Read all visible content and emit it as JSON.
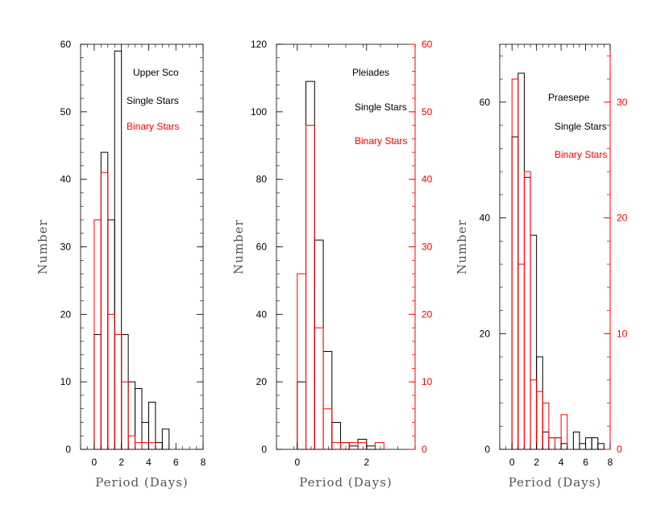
{
  "chart_data": [
    {
      "type": "bar",
      "title": "",
      "xlabel": "Period (Days)",
      "ylabel": "Number",
      "xlim": [
        -1,
        8
      ],
      "ylim": [
        0,
        60
      ],
      "xticks": [
        "0",
        "2",
        "4",
        "6",
        "8"
      ],
      "xtick_values": [
        0,
        2,
        4,
        6,
        8
      ],
      "yticks": [
        "0",
        "10",
        "20",
        "30",
        "40",
        "50",
        "60"
      ],
      "ytick_values": [
        0,
        10,
        20,
        30,
        40,
        50,
        60
      ],
      "bin_width": 0.5,
      "annotations": [
        {
          "text": "Upper Sco",
          "color": "#000000"
        },
        {
          "text": "Single Stars",
          "color": "#000000"
        },
        {
          "text": "Binary Stars",
          "color": "#ff0000"
        }
      ],
      "series": [
        {
          "name": "Single Stars",
          "color": "#000000",
          "axis": "left",
          "bins": [
            0,
            0.5,
            1.0,
            1.5,
            2.0,
            2.5,
            3.0,
            3.5,
            4.0,
            4.5,
            5.0,
            5.5,
            6.0,
            6.5,
            7.0,
            7.5
          ],
          "values": [
            17,
            44,
            34,
            59,
            17,
            10,
            9,
            4,
            7,
            1,
            3,
            0,
            0,
            0,
            0,
            0
          ]
        },
        {
          "name": "Binary Stars",
          "color": "#ff0000",
          "axis": "left",
          "bins": [
            0,
            0.5,
            1.0,
            1.5,
            2.0,
            2.5,
            3.0,
            3.5,
            4.0,
            4.5
          ],
          "values": [
            34,
            41,
            20,
            17,
            10,
            2,
            1,
            1,
            1,
            0
          ]
        }
      ]
    },
    {
      "type": "bar",
      "title": "",
      "xlabel": "Period (Days)",
      "ylabel": "Number",
      "xlim": [
        -0.6,
        3.4
      ],
      "ylim": [
        0,
        120
      ],
      "y2lim": [
        0,
        60
      ],
      "xticks": [
        "0",
        "2"
      ],
      "xtick_values": [
        0,
        2
      ],
      "yticks": [
        "0",
        "20",
        "40",
        "60",
        "80",
        "100",
        "120"
      ],
      "ytick_values": [
        0,
        20,
        40,
        60,
        80,
        100,
        120
      ],
      "y2ticks": [
        "0",
        "10",
        "20",
        "30",
        "40",
        "50",
        "60"
      ],
      "y2tick_values": [
        0,
        10,
        20,
        30,
        40,
        50,
        60
      ],
      "bin_width": 0.25,
      "annotations": [
        {
          "text": "Pleiades",
          "color": "#000000"
        },
        {
          "text": "Single Stars",
          "color": "#000000"
        },
        {
          "text": "Binary Stars",
          "color": "#ff0000"
        }
      ],
      "series": [
        {
          "name": "Single Stars",
          "color": "#000000",
          "axis": "left",
          "bins": [
            0,
            0.25,
            0.5,
            0.75,
            1.0,
            1.25,
            1.5,
            1.75,
            2.0,
            2.25
          ],
          "values": [
            20,
            109,
            62,
            29,
            8,
            2,
            1,
            3,
            1,
            0
          ]
        },
        {
          "name": "Binary Stars",
          "color": "#ff0000",
          "axis": "right",
          "bins": [
            0,
            0.25,
            0.5,
            0.75,
            1.0,
            1.25,
            1.5,
            1.75,
            2.0,
            2.25
          ],
          "values": [
            26,
            48,
            18,
            6,
            1,
            1,
            1,
            1,
            0,
            1
          ]
        }
      ]
    },
    {
      "type": "bar",
      "title": "",
      "xlabel": "Period (Days)",
      "ylabel": "Number",
      "xlim": [
        -1,
        8
      ],
      "ylim": [
        0,
        70
      ],
      "y2lim": [
        0,
        35
      ],
      "xticks": [
        "0",
        "2",
        "4",
        "6",
        "8"
      ],
      "xtick_values": [
        0,
        2,
        4,
        6,
        8
      ],
      "yticks": [
        "0",
        "20",
        "40",
        "60"
      ],
      "ytick_values": [
        0,
        20,
        40,
        60
      ],
      "y2ticks": [
        "0",
        "10",
        "20",
        "30"
      ],
      "y2tick_values": [
        0,
        10,
        20,
        30
      ],
      "bin_width": 0.5,
      "annotations": [
        {
          "text": "Praesepe",
          "color": "#000000"
        },
        {
          "text": "Single Stars",
          "color": "#000000"
        },
        {
          "text": "Binary Stars",
          "color": "#ff0000"
        }
      ],
      "series": [
        {
          "name": "Single Stars",
          "color": "#000000",
          "axis": "left",
          "bins": [
            0,
            0.5,
            1.0,
            1.5,
            2.0,
            2.5,
            3.0,
            3.5,
            4.0,
            4.5,
            5.0,
            5.5,
            6.0,
            6.5,
            7.0
          ],
          "values": [
            54,
            65,
            47,
            37,
            16,
            3,
            2,
            2,
            1,
            0,
            3,
            1,
            2,
            2,
            1
          ]
        },
        {
          "name": "Binary Stars",
          "color": "#ff0000",
          "axis": "right",
          "bins": [
            0,
            0.5,
            1.0,
            1.5,
            2.0,
            2.5,
            3.0,
            3.5,
            4.0,
            4.5
          ],
          "values": [
            32,
            16,
            24,
            6,
            5,
            4,
            1,
            1,
            3,
            0
          ]
        }
      ]
    }
  ]
}
